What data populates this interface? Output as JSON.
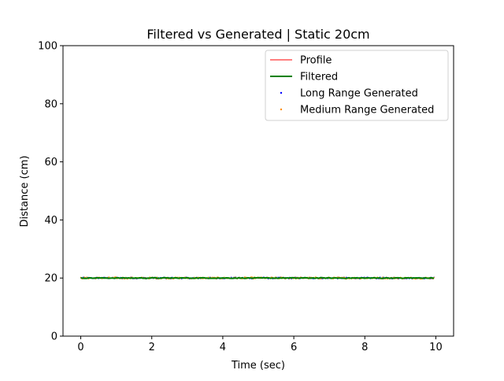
{
  "chart_data": {
    "type": "line",
    "title": "Filtered vs Generated | Static 20cm",
    "xlabel": "Time (sec)",
    "ylabel": "Distance (cm)",
    "xlim": [
      -0.5,
      10.5
    ],
    "ylim": [
      0,
      100
    ],
    "xticks": [
      0,
      2,
      4,
      6,
      8,
      10
    ],
    "yticks": [
      0,
      20,
      40,
      60,
      80,
      100
    ],
    "xtick_labels": [
      "0",
      "2",
      "4",
      "6",
      "8",
      "10"
    ],
    "ytick_labels": [
      "0",
      "20",
      "40",
      "60",
      "80",
      "100"
    ],
    "grid": false,
    "legend_position": "top-right",
    "x_start": 0,
    "x_end": 9.95,
    "series": [
      {
        "name": "Profile",
        "kind": "line",
        "color": "#ff0000",
        "values_constant": 20
      },
      {
        "name": "Filtered",
        "kind": "line",
        "color": "#008000",
        "values_constant": 20
      },
      {
        "name": "Long Range Generated",
        "kind": "scatter",
        "color": "#0000ff",
        "mean": 20,
        "spread": 0.3
      },
      {
        "name": "Medium Range Generated",
        "kind": "scatter",
        "color": "#ff8c00",
        "mean": 20,
        "spread": 0.35
      }
    ]
  }
}
